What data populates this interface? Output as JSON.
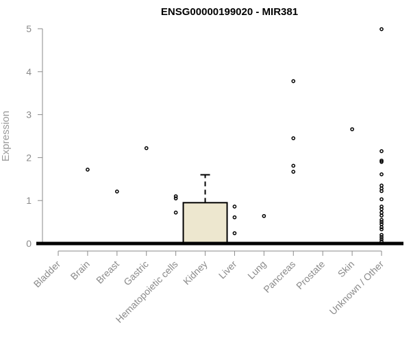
{
  "chart_data": {
    "type": "boxplot",
    "title": "ENSG00000199020 - MIR381",
    "xlabel": "",
    "ylabel": "Expression",
    "ylim": [
      0,
      5
    ],
    "yticks": [
      0,
      1,
      2,
      3,
      4,
      5
    ],
    "grid": false,
    "categories": [
      "Bladder",
      "Brain",
      "Breast",
      "Gastric",
      "Hematopoietic cells",
      "Kidney",
      "Liver",
      "Lung",
      "Pancreas",
      "Prostate",
      "Skin",
      "Unknown / Other"
    ],
    "boxes": [
      {
        "category": "Bladder",
        "q1": 0,
        "median": 0,
        "q3": 0,
        "whisker_low": 0,
        "whisker_high": 0,
        "outliers": []
      },
      {
        "category": "Brain",
        "q1": 0,
        "median": 0,
        "q3": 0,
        "whisker_low": 0,
        "whisker_high": 0,
        "outliers": [
          1.72
        ]
      },
      {
        "category": "Breast",
        "q1": 0,
        "median": 0,
        "q3": 0,
        "whisker_low": 0,
        "whisker_high": 0,
        "outliers": [
          1.21
        ]
      },
      {
        "category": "Gastric",
        "q1": 0,
        "median": 0,
        "q3": 0,
        "whisker_low": 0,
        "whisker_high": 0,
        "outliers": [
          2.22
        ]
      },
      {
        "category": "Hematopoietic cells",
        "q1": 0,
        "median": 0,
        "q3": 0,
        "whisker_low": 0,
        "whisker_high": 0,
        "outliers": [
          1.1,
          1.05,
          0.72
        ]
      },
      {
        "category": "Kidney",
        "q1": 0,
        "median": 0,
        "q3": 0.95,
        "whisker_low": 0,
        "whisker_high": 1.6,
        "outliers": []
      },
      {
        "category": "Liver",
        "q1": 0,
        "median": 0,
        "q3": 0,
        "whisker_low": 0,
        "whisker_high": 0,
        "outliers": [
          0.86,
          0.61,
          0.24
        ]
      },
      {
        "category": "Lung",
        "q1": 0,
        "median": 0,
        "q3": 0,
        "whisker_low": 0,
        "whisker_high": 0,
        "outliers": [
          0.64
        ]
      },
      {
        "category": "Pancreas",
        "q1": 0,
        "median": 0,
        "q3": 0,
        "whisker_low": 0,
        "whisker_high": 0,
        "outliers": [
          3.78,
          2.45,
          1.81,
          1.67
        ]
      },
      {
        "category": "Prostate",
        "q1": 0,
        "median": 0,
        "q3": 0,
        "whisker_low": 0,
        "whisker_high": 0,
        "outliers": []
      },
      {
        "category": "Skin",
        "q1": 0,
        "median": 0,
        "q3": 0,
        "whisker_low": 0,
        "whisker_high": 0,
        "outliers": [
          2.66
        ]
      },
      {
        "category": "Unknown / Other",
        "q1": 0,
        "median": 0,
        "q3": 0,
        "whisker_low": 0,
        "whisker_high": 0,
        "outliers": [
          4.99,
          2.15,
          1.93,
          1.9,
          1.61,
          1.35,
          1.28,
          1.22,
          1.03,
          0.86,
          0.8,
          0.72,
          0.65,
          0.55,
          0.5,
          0.45,
          0.38,
          0.33,
          0.2,
          0.15,
          0.1,
          0.05
        ]
      }
    ],
    "colors": {
      "box_fill": "#ede7cf",
      "box_stroke": "#000000",
      "axis": "#8a8a8a"
    }
  }
}
